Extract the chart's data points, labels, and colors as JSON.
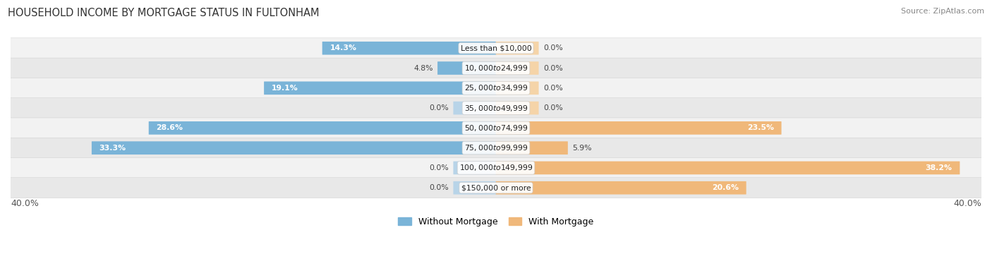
{
  "title": "HOUSEHOLD INCOME BY MORTGAGE STATUS IN FULTONHAM",
  "source": "Source: ZipAtlas.com",
  "categories": [
    "Less than $10,000",
    "$10,000 to $24,999",
    "$25,000 to $34,999",
    "$35,000 to $49,999",
    "$50,000 to $74,999",
    "$75,000 to $99,999",
    "$100,000 to $149,999",
    "$150,000 or more"
  ],
  "without_mortgage": [
    14.3,
    4.8,
    19.1,
    0.0,
    28.6,
    33.3,
    0.0,
    0.0
  ],
  "with_mortgage": [
    0.0,
    0.0,
    0.0,
    0.0,
    23.5,
    5.9,
    38.2,
    20.6
  ],
  "xlim": 40.0,
  "color_without": "#7ab4d8",
  "color_with": "#f0b87a",
  "color_without_zero": "#b8d4e8",
  "color_with_zero": "#f5d4a8",
  "row_color_odd": "#f2f2f2",
  "row_color_even": "#e8e8e8",
  "legend_without": "Without Mortgage",
  "legend_with": "With Mortgage",
  "axis_label": "40.0%",
  "zero_bar_width": 3.5
}
